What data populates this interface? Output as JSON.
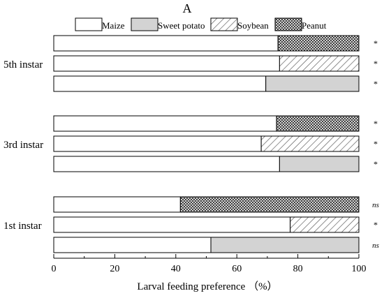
{
  "chart_data": {
    "type": "bar",
    "orientation": "horizontal",
    "stacked": true,
    "title": "A",
    "xlabel": "Larval feeding preference （%）",
    "ylabel": "",
    "xlim": [
      0,
      100
    ],
    "xticks": [
      "0",
      "20",
      "40",
      "60",
      "80",
      "100"
    ],
    "grid": false,
    "legend_position": "top",
    "legend": [
      {
        "name": "Maize",
        "fill": "white",
        "color": "#ffffff"
      },
      {
        "name": "Sweet potato",
        "fill": "solid",
        "color": "#d3d3d3"
      },
      {
        "name": "Soybean",
        "fill": "diagonal-hatch",
        "color": "#666666"
      },
      {
        "name": "Peanut",
        "fill": "crosshatch",
        "color": "#333333"
      }
    ],
    "groups": [
      {
        "label": "5th instar",
        "bars": [
          {
            "comparison": "Peanut",
            "maize": 73.5,
            "other": 26.5,
            "sig": "*"
          },
          {
            "comparison": "Soybean",
            "maize": 74,
            "other": 26,
            "sig": "*"
          },
          {
            "comparison": "Sweet potato",
            "maize": 69.5,
            "other": 30.5,
            "sig": "*"
          }
        ]
      },
      {
        "label": "3rd instar",
        "bars": [
          {
            "comparison": "Peanut",
            "maize": 73,
            "other": 27,
            "sig": "*"
          },
          {
            "comparison": "Soybean",
            "maize": 68,
            "other": 32,
            "sig": "*"
          },
          {
            "comparison": "Sweet potato",
            "maize": 74,
            "other": 26,
            "sig": "*"
          }
        ]
      },
      {
        "label": "1st instar",
        "bars": [
          {
            "comparison": "Peanut",
            "maize": 41.5,
            "other": 58.5,
            "sig": "ns"
          },
          {
            "comparison": "Soybean",
            "maize": 77.5,
            "other": 22.5,
            "sig": "*"
          },
          {
            "comparison": "Sweet potato",
            "maize": 51.5,
            "other": 48.5,
            "sig": "ns"
          }
        ]
      }
    ]
  }
}
